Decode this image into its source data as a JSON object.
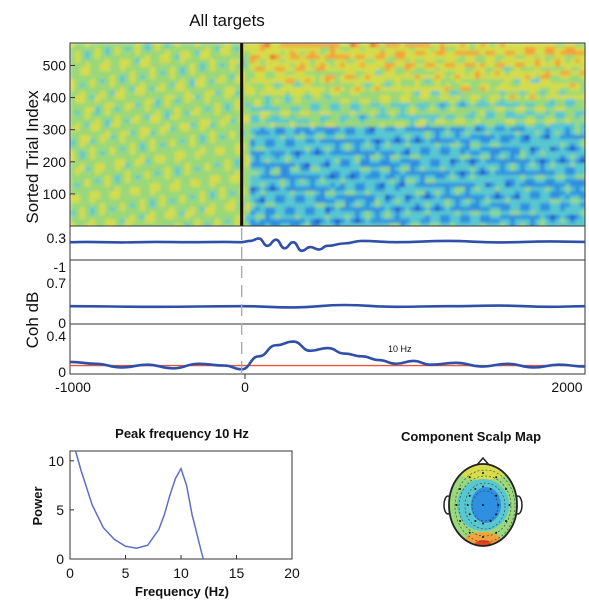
{
  "chart_data": [
    {
      "type": "heatmap",
      "title": "All targets",
      "ylabel": "Sorted Trial Index",
      "xlim": [
        -1000,
        2000
      ],
      "ylim": [
        0,
        570
      ],
      "yticks": [
        100,
        200,
        300,
        400,
        500
      ],
      "colormap": [
        "#1a3cc8",
        "#2f8fe0",
        "#58c7d0",
        "#9ad87a",
        "#d6dc4a",
        "#f2a23a",
        "#e4451e"
      ],
      "event_line_x": 0
    },
    {
      "type": "line",
      "ylim": [
        -1,
        0.3
      ],
      "ytick_labels": [
        "0.3",
        "-1"
      ],
      "x": [
        -1000,
        -900,
        -700,
        -500,
        -300,
        -100,
        0,
        50,
        100,
        150,
        200,
        250,
        300,
        350,
        400,
        450,
        500,
        600,
        700,
        900,
        1200,
        1500,
        1800,
        2000
      ],
      "y": [
        0.05,
        0.06,
        0.04,
        0.06,
        0.05,
        0.06,
        0.05,
        0.1,
        0.2,
        -0.1,
        0.15,
        -0.2,
        0.05,
        -0.3,
        -0.15,
        -0.25,
        -0.1,
        0.0,
        0.1,
        0.05,
        0.1,
        0.04,
        0.08,
        0.06
      ],
      "color": "#2f4fa8"
    },
    {
      "type": "line",
      "ylim": [
        0,
        0.7
      ],
      "ytick_labels": [
        "0.7",
        "0"
      ],
      "x": [
        -1000,
        -500,
        0,
        300,
        600,
        900,
        1200,
        1500,
        1800,
        2000
      ],
      "y": [
        0.28,
        0.27,
        0.28,
        0.26,
        0.3,
        0.27,
        0.28,
        0.29,
        0.27,
        0.28
      ],
      "color": "#2f4fa8"
    },
    {
      "type": "line",
      "ylabel": "Coh dB",
      "ylim": [
        0,
        0.4
      ],
      "ytick_labels": [
        "0.4",
        "0"
      ],
      "xlim": [
        -1000,
        2000
      ],
      "xtick_labels": [
        "-1000",
        "0",
        "2000"
      ],
      "annotation": "10 Hz",
      "threshold": 0.08,
      "threshold_color": "#e0573a",
      "x": [
        -1000,
        -850,
        -700,
        -550,
        -400,
        -250,
        -100,
        0,
        100,
        200,
        300,
        400,
        500,
        600,
        700,
        800,
        900,
        1000,
        1100,
        1250,
        1400,
        1550,
        1700,
        1850,
        2000
      ],
      "y": [
        0.12,
        0.1,
        0.06,
        0.09,
        0.05,
        0.1,
        0.08,
        0.04,
        0.18,
        0.3,
        0.34,
        0.24,
        0.27,
        0.21,
        0.18,
        0.14,
        0.1,
        0.13,
        0.09,
        0.11,
        0.07,
        0.1,
        0.06,
        0.09,
        0.07
      ],
      "color": "#2f4fa8"
    },
    {
      "type": "line",
      "title": "Peak frequency 10 Hz",
      "xlabel": "Frequency (Hz)",
      "ylabel": "Power",
      "xlim": [
        0,
        20
      ],
      "ylim": [
        0,
        11
      ],
      "xticks": [
        0,
        5,
        10,
        15,
        20
      ],
      "yticks": [
        0,
        5,
        10
      ],
      "x": [
        0.5,
        1,
        2,
        3,
        4,
        5,
        6,
        7,
        8,
        8.5,
        9,
        9.5,
        10,
        10.5,
        11,
        12
      ],
      "y": [
        11,
        9,
        5.5,
        3.2,
        2,
        1.3,
        1.1,
        1.4,
        3,
        4.5,
        6.5,
        8.2,
        9.2,
        7.5,
        4.5,
        0
      ],
      "color": "#5b6fc9"
    }
  ],
  "scalp_map": {
    "title": "Component Scalp Map",
    "colors": [
      "#2f8fe0",
      "#58c7d0",
      "#9ad87a",
      "#d6dc4a",
      "#f2a23a",
      "#e4451e"
    ]
  }
}
